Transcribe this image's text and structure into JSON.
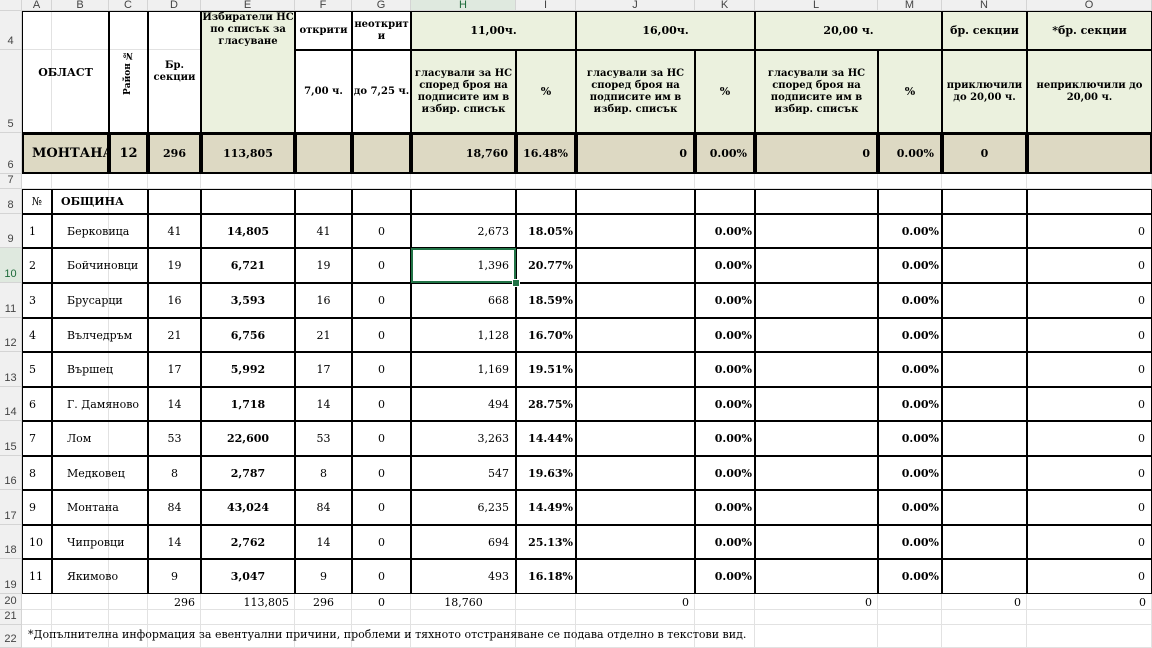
{
  "columns": [
    "A",
    "B",
    "C",
    "D",
    "E",
    "F",
    "G",
    "H",
    "I",
    "J",
    "K",
    "L",
    "M",
    "N",
    "O"
  ],
  "row_numbers": [
    "4",
    "5",
    "6",
    "7",
    "8",
    "9",
    "10",
    "11",
    "12",
    "13",
    "14",
    "15",
    "16",
    "17",
    "18",
    "19",
    "20",
    "21",
    "22"
  ],
  "selected_cell": {
    "col": "H",
    "row": "10"
  },
  "header": {
    "oblast": "ОБЛАСТ",
    "rayon": "Район №",
    "br_sekcii": "Бр. секции",
    "izbirateli": "Избиратели НС по списък за гласуване",
    "otkriti": "открити",
    "otkriti_time": "7,00 ч.",
    "neotkriti": "неоткрит и",
    "neotkriti_time": "до 7,25 ч.",
    "t11": "11,00ч.",
    "t16": "16,00ч.",
    "t20": "20,00 ч.",
    "glasuvali": "гласували за НС според броя на подписите им в избир. списък",
    "pct": "%",
    "br_sekcii2": "бр. секции",
    "priklyuchili": "приключили до 20,00 ч.",
    "br_sekcii3": "*бр. секции",
    "nepriklyuchili": "неприключили до 20,00 ч."
  },
  "summary": {
    "name": "МОНТАНА",
    "rayon": "12",
    "sekcii": "296",
    "izbirateli": "113,805",
    "g11": "18,760",
    "p11": "16.48%",
    "g16": "0",
    "p16": "0.00%",
    "g20": "0",
    "p20": "0.00%",
    "priklyuchili": "0"
  },
  "list_header": {
    "num": "№",
    "obshtina": "ОБЩИНА"
  },
  "rows": [
    {
      "n": "1",
      "name": "Берковица",
      "sek": "41",
      "izb": "14,805",
      "otk": "41",
      "neotk": "0",
      "g11": "2,673",
      "p11": "18.05%",
      "p16": "0.00%",
      "p20": "0.00%",
      "nepr": "0"
    },
    {
      "n": "2",
      "name": "Бойчиновци",
      "sek": "19",
      "izb": "6,721",
      "otk": "19",
      "neotk": "0",
      "g11": "1,396",
      "p11": "20.77%",
      "p16": "0.00%",
      "p20": "0.00%",
      "nepr": "0"
    },
    {
      "n": "3",
      "name": "Брусарци",
      "sek": "16",
      "izb": "3,593",
      "otk": "16",
      "neotk": "0",
      "g11": "668",
      "p11": "18.59%",
      "p16": "0.00%",
      "p20": "0.00%",
      "nepr": "0"
    },
    {
      "n": "4",
      "name": "Вълчедръм",
      "sek": "21",
      "izb": "6,756",
      "otk": "21",
      "neotk": "0",
      "g11": "1,128",
      "p11": "16.70%",
      "p16": "0.00%",
      "p20": "0.00%",
      "nepr": "0"
    },
    {
      "n": "5",
      "name": "Вършец",
      "sek": "17",
      "izb": "5,992",
      "otk": "17",
      "neotk": "0",
      "g11": "1,169",
      "p11": "19.51%",
      "p16": "0.00%",
      "p20": "0.00%",
      "nepr": "0"
    },
    {
      "n": "6",
      "name": "Г. Дамяново",
      "sek": "14",
      "izb": "1,718",
      "otk": "14",
      "neotk": "0",
      "g11": "494",
      "p11": "28.75%",
      "p16": "0.00%",
      "p20": "0.00%",
      "nepr": "0"
    },
    {
      "n": "7",
      "name": "Лом",
      "sek": "53",
      "izb": "22,600",
      "otk": "53",
      "neotk": "0",
      "g11": "3,263",
      "p11": "14.44%",
      "p16": "0.00%",
      "p20": "0.00%",
      "nepr": "0"
    },
    {
      "n": "8",
      "name": "Медковец",
      "sek": "8",
      "izb": "2,787",
      "otk": "8",
      "neotk": "0",
      "g11": "547",
      "p11": "19.63%",
      "p16": "0.00%",
      "p20": "0.00%",
      "nepr": "0"
    },
    {
      "n": "9",
      "name": "Монтана",
      "sek": "84",
      "izb": "43,024",
      "otk": "84",
      "neotk": "0",
      "g11": "6,235",
      "p11": "14.49%",
      "p16": "0.00%",
      "p20": "0.00%",
      "nepr": "0"
    },
    {
      "n": "10",
      "name": "Чипровци",
      "sek": "14",
      "izb": "2,762",
      "otk": "14",
      "neotk": "0",
      "g11": "694",
      "p11": "25.13%",
      "p16": "0.00%",
      "p20": "0.00%",
      "nepr": "0"
    },
    {
      "n": "11",
      "name": "Якимово",
      "sek": "9",
      "izb": "3,047",
      "otk": "9",
      "neotk": "0",
      "g11": "493",
      "p11": "16.18%",
      "p16": "0.00%",
      "p20": "0.00%",
      "nepr": "0"
    }
  ],
  "totals": {
    "sek": "296",
    "izb": "113,805",
    "otk": "296",
    "neotk": "0",
    "g11": "18,760",
    "g16": "0",
    "g20": "0",
    "pr": "0",
    "nepr": "0"
  },
  "footnote": "*Допълнителна информация за евентуални причини, проблеми и тяхното отстраняване се подава отделно в текстови вид."
}
